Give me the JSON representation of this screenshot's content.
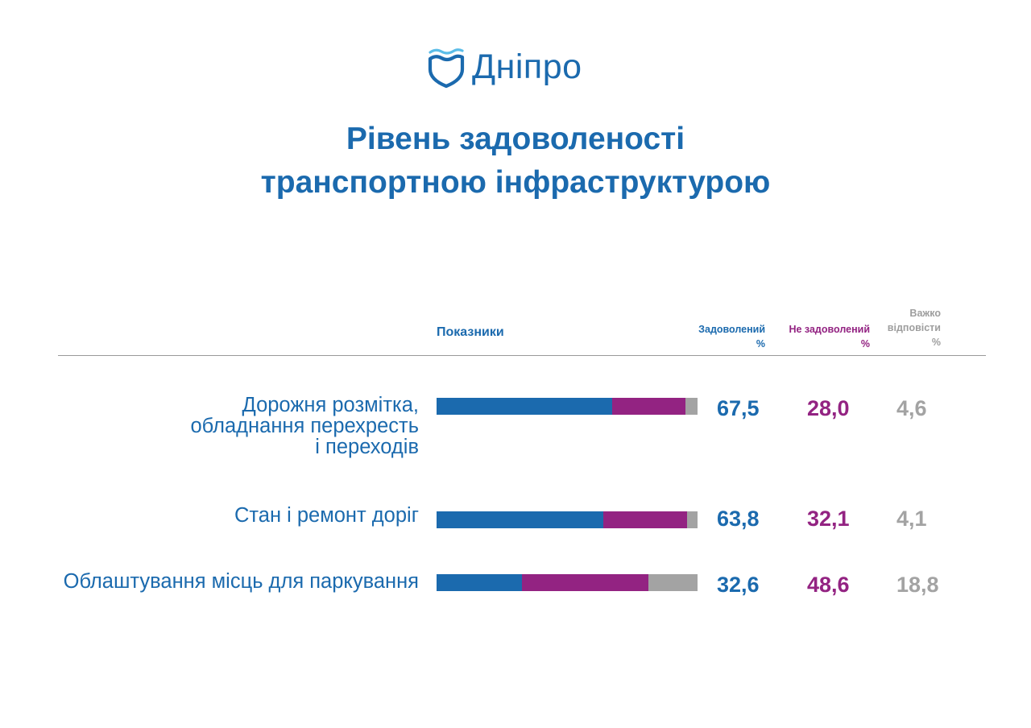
{
  "brand": {
    "name": "Дніпро"
  },
  "title": {
    "line1": "Рівень задоволеності",
    "line2": "транспортною інфраструктурою"
  },
  "chart_data": {
    "type": "bar",
    "orientation": "horizontal",
    "stacked": true,
    "title": "Рівень задоволеності транспортною інфраструктурою",
    "category_header": "Показники",
    "categories": [
      "Дорожня розмітка, обладнання перехресть і переходів",
      "Стан і ремонт доріг",
      "Облаштування місць для паркування"
    ],
    "category_lines": [
      [
        "Дорожня розмітка,",
        "обладнання перехресть",
        "і переходів"
      ],
      [
        "Стан і ремонт доріг"
      ],
      [
        "Облаштування місць для паркування"
      ]
    ],
    "series": [
      {
        "name": "Задоволений",
        "unit": "%",
        "color": "#1B6AAE",
        "values": [
          67.5,
          63.8,
          32.6
        ],
        "labels": [
          "67,5",
          "63,8",
          "32,6"
        ]
      },
      {
        "name": "Не задоволений",
        "unit": "%",
        "color": "#932382",
        "values": [
          28.0,
          32.1,
          48.6
        ],
        "labels": [
          "28,0",
          "32,1",
          "48,6"
        ]
      },
      {
        "name_lines": [
          "Важко",
          "відповісти"
        ],
        "name": "Важко відповісти",
        "unit": "%",
        "color": "#A3A3A3",
        "values": [
          4.6,
          4.1,
          18.8
        ],
        "labels": [
          "4,6",
          "4,1",
          "18,8"
        ]
      }
    ],
    "xlim": [
      0,
      100
    ],
    "legend": "column headers above values",
    "grid": false
  }
}
